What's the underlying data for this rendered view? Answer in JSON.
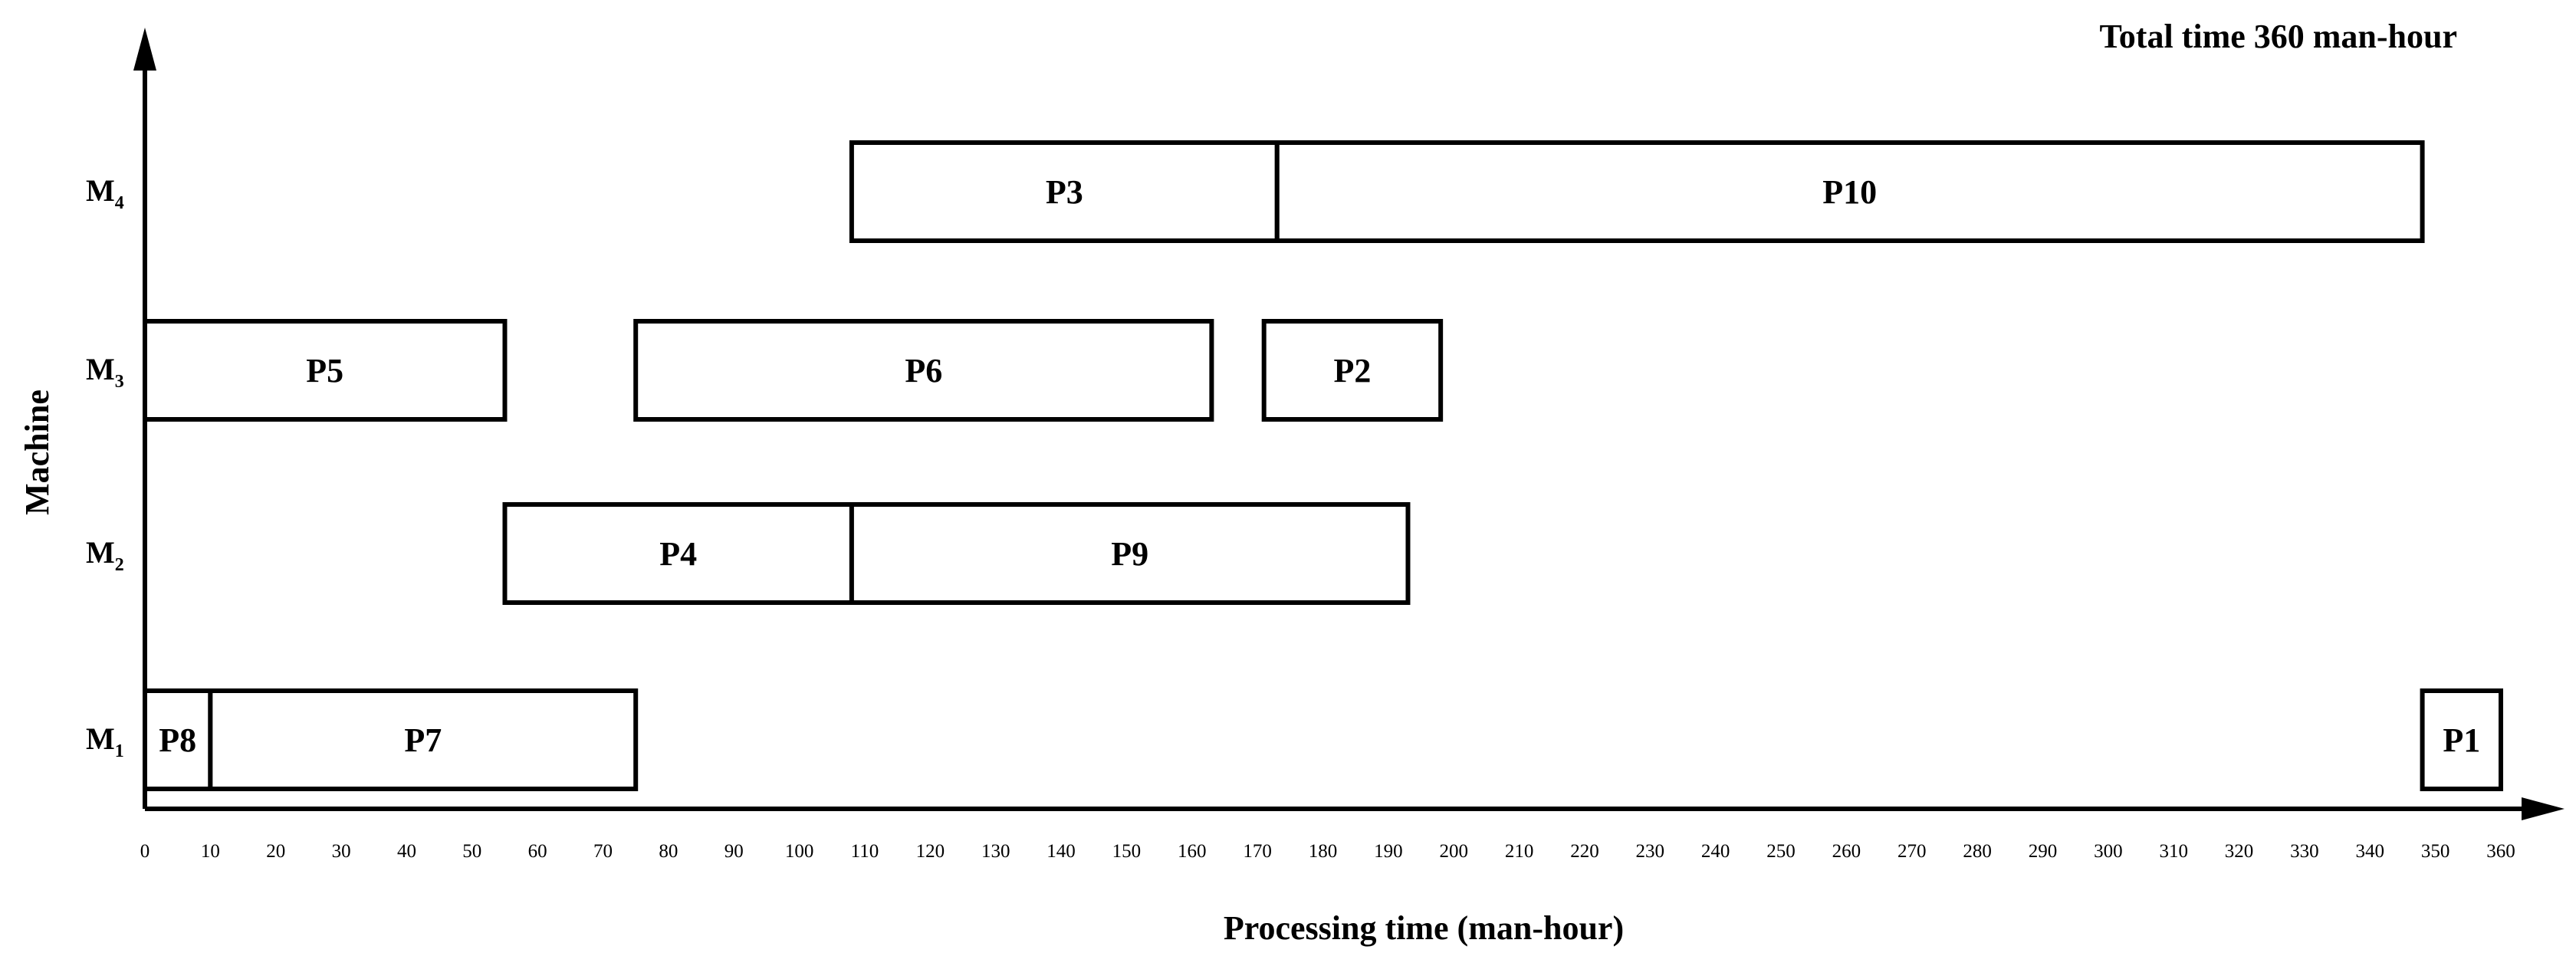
{
  "chart_data": {
    "type": "gantt",
    "annotation": "Total time 360 man-hour",
    "xlabel": "Processing time (man-hour)",
    "ylabel": "Machine",
    "xlim": [
      0,
      360
    ],
    "grid": false,
    "machines": [
      {
        "main": "M",
        "sub": "1"
      },
      {
        "main": "M",
        "sub": "2"
      },
      {
        "main": "M",
        "sub": "3"
      },
      {
        "main": "M",
        "sub": "4"
      }
    ],
    "tasks": [
      {
        "label": "P8",
        "machine": 0,
        "start": 0,
        "end": 10
      },
      {
        "label": "P7",
        "machine": 0,
        "start": 10,
        "end": 75
      },
      {
        "label": "P1",
        "machine": 0,
        "start": 348,
        "end": 360
      },
      {
        "label": "P4",
        "machine": 1,
        "start": 55,
        "end": 108
      },
      {
        "label": "P9",
        "machine": 1,
        "start": 108,
        "end": 193
      },
      {
        "label": "P5",
        "machine": 2,
        "start": 0,
        "end": 55
      },
      {
        "label": "P6",
        "machine": 2,
        "start": 75,
        "end": 163
      },
      {
        "label": "P2",
        "machine": 2,
        "start": 171,
        "end": 198
      },
      {
        "label": "P3",
        "machine": 3,
        "start": 108,
        "end": 173
      },
      {
        "label": "P10",
        "machine": 3,
        "start": 173,
        "end": 348
      }
    ],
    "xticks": [
      0,
      10,
      20,
      30,
      40,
      50,
      60,
      70,
      80,
      90,
      100,
      110,
      120,
      130,
      140,
      150,
      160,
      170,
      180,
      190,
      200,
      210,
      220,
      230,
      240,
      250,
      260,
      270,
      280,
      290,
      300,
      310,
      320,
      330,
      340,
      350,
      360
    ]
  }
}
